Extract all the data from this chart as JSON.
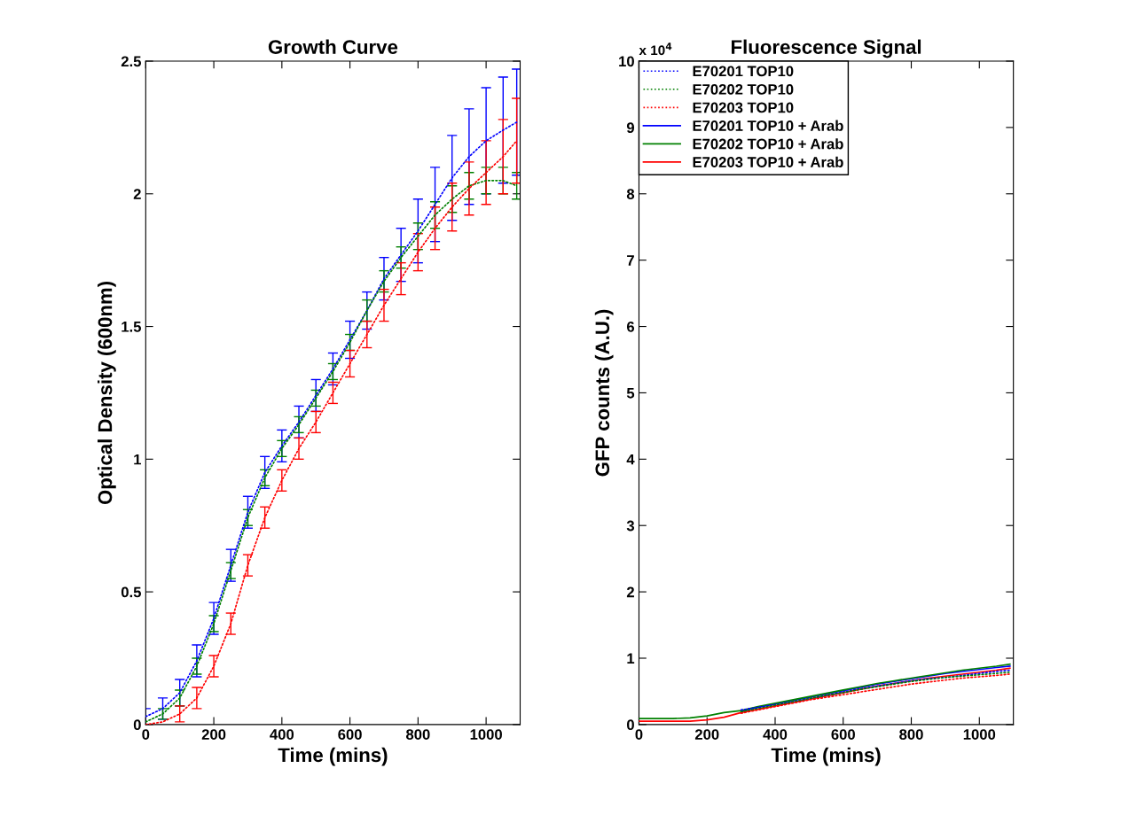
{
  "chart_data": [
    {
      "type": "line",
      "title": "Growth Curve",
      "xlabel": "Time (mins)",
      "ylabel": "Optical Density (600nm)",
      "x": [
        0,
        50,
        100,
        150,
        200,
        250,
        300,
        350,
        400,
        450,
        500,
        550,
        600,
        650,
        700,
        750,
        800,
        850,
        900,
        950,
        1000,
        1050,
        1090
      ],
      "series": [
        {
          "color": "#0000ff",
          "line_style": "dotted",
          "values": [
            0.03,
            0.06,
            0.12,
            0.24,
            0.4,
            0.6,
            0.8,
            0.95,
            1.05,
            1.14,
            1.24,
            1.34,
            1.45,
            1.56,
            1.68,
            1.77,
            1.86,
            1.96,
            2.06,
            2.14,
            2.2,
            2.24,
            2.27
          ],
          "errors": [
            0.03,
            0.04,
            0.05,
            0.06,
            0.06,
            0.06,
            0.06,
            0.06,
            0.06,
            0.06,
            0.06,
            0.06,
            0.07,
            0.07,
            0.08,
            0.1,
            0.12,
            0.14,
            0.16,
            0.18,
            0.2,
            0.2,
            0.2
          ]
        },
        {
          "color": "#008000",
          "line_style": "dotted",
          "values": [
            0.01,
            0.04,
            0.1,
            0.22,
            0.38,
            0.58,
            0.78,
            0.93,
            1.04,
            1.13,
            1.23,
            1.33,
            1.44,
            1.56,
            1.67,
            1.76,
            1.84,
            1.92,
            1.98,
            2.03,
            2.05,
            2.05,
            2.03
          ],
          "errors": [
            null,
            0.02,
            0.03,
            0.03,
            0.03,
            0.03,
            0.03,
            0.03,
            0.03,
            0.03,
            0.03,
            0.03,
            0.03,
            0.04,
            0.04,
            0.04,
            0.05,
            0.05,
            0.05,
            0.05,
            0.05,
            0.05,
            0.05
          ]
        },
        {
          "color": "#ff0000",
          "line_style": "dotted",
          "values": [
            0.0,
            0.01,
            0.04,
            0.1,
            0.22,
            0.38,
            0.6,
            0.78,
            0.92,
            1.04,
            1.14,
            1.25,
            1.36,
            1.47,
            1.58,
            1.68,
            1.78,
            1.87,
            1.95,
            2.02,
            2.08,
            2.14,
            2.2
          ],
          "errors": [
            null,
            null,
            0.03,
            0.04,
            0.04,
            0.04,
            0.04,
            0.04,
            0.04,
            0.04,
            0.04,
            0.04,
            0.05,
            0.05,
            0.06,
            0.06,
            0.07,
            0.08,
            0.09,
            0.1,
            0.12,
            0.14,
            0.16
          ]
        }
      ],
      "xlim": [
        0,
        1100
      ],
      "xticks": [
        0,
        200,
        400,
        600,
        800,
        1000
      ],
      "ylim": [
        0,
        2.5
      ],
      "yticks": [
        0,
        0.5,
        1,
        1.5,
        2,
        2.5
      ],
      "grid": false,
      "legend": false
    },
    {
      "type": "line",
      "title": "Fluorescence Signal",
      "xlabel": "Time (mins)",
      "ylabel": "GFP counts (A.U.)",
      "annotations": [
        "x 10$^{4}$"
      ],
      "x": [
        0,
        50,
        100,
        150,
        200,
        250,
        300,
        350,
        400,
        450,
        500,
        550,
        600,
        650,
        700,
        750,
        800,
        850,
        900,
        950,
        1000,
        1050,
        1090
      ],
      "series": [
        {
          "name": "E70201 TOP10",
          "color": "#0000ff",
          "line_style": "dotted",
          "values": [
            null,
            null,
            null,
            null,
            null,
            null,
            0.22,
            0.26,
            0.3,
            0.34,
            0.39,
            0.44,
            0.49,
            0.54,
            0.58,
            0.62,
            0.66,
            0.69,
            0.71,
            0.74,
            0.77,
            0.8,
            0.82
          ]
        },
        {
          "name": "E70202 TOP10",
          "color": "#008000",
          "line_style": "dotted",
          "values": [
            null,
            null,
            null,
            null,
            null,
            null,
            0.19,
            0.24,
            0.29,
            0.34,
            0.39,
            0.44,
            0.48,
            0.53,
            0.57,
            0.61,
            0.65,
            0.68,
            0.71,
            0.73,
            0.75,
            0.77,
            0.79
          ]
        },
        {
          "name": "E70203 TOP10",
          "color": "#ff0000",
          "line_style": "dotted",
          "values": [
            null,
            null,
            null,
            null,
            null,
            null,
            0.17,
            0.22,
            0.27,
            0.32,
            0.37,
            0.41,
            0.45,
            0.49,
            0.53,
            0.57,
            0.61,
            0.64,
            0.67,
            0.7,
            0.72,
            0.74,
            0.76
          ]
        },
        {
          "name": "E70201 TOP10 + Arab",
          "color": "#0000ff",
          "line_style": "solid",
          "values": [
            null,
            null,
            null,
            null,
            null,
            null,
            0.2,
            0.26,
            0.31,
            0.36,
            0.41,
            0.46,
            0.51,
            0.56,
            0.61,
            0.65,
            0.69,
            0.73,
            0.77,
            0.8,
            0.83,
            0.86,
            0.88
          ]
        },
        {
          "name": "E70202 TOP10 + Arab",
          "color": "#008000",
          "line_style": "solid",
          "values": [
            0.09,
            0.09,
            0.09,
            0.1,
            0.13,
            0.18,
            0.21,
            0.27,
            0.32,
            0.37,
            0.42,
            0.47,
            0.52,
            0.57,
            0.62,
            0.66,
            0.7,
            0.74,
            0.78,
            0.82,
            0.85,
            0.88,
            0.91
          ]
        },
        {
          "name": "E70203 TOP10 + Arab",
          "color": "#ff0000",
          "line_style": "solid",
          "values": [
            0.05,
            0.05,
            0.05,
            0.05,
            0.07,
            0.11,
            0.18,
            0.23,
            0.28,
            0.33,
            0.38,
            0.43,
            0.48,
            0.53,
            0.58,
            0.62,
            0.66,
            0.7,
            0.73,
            0.76,
            0.79,
            0.82,
            0.85
          ]
        }
      ],
      "xlim": [
        0,
        1100
      ],
      "xticks": [
        0,
        200,
        400,
        600,
        800,
        1000
      ],
      "ylim": [
        0,
        10
      ],
      "yticks": [
        0,
        1,
        2,
        3,
        4,
        5,
        6,
        7,
        8,
        9,
        10
      ],
      "grid": false,
      "legend": "top left"
    }
  ]
}
